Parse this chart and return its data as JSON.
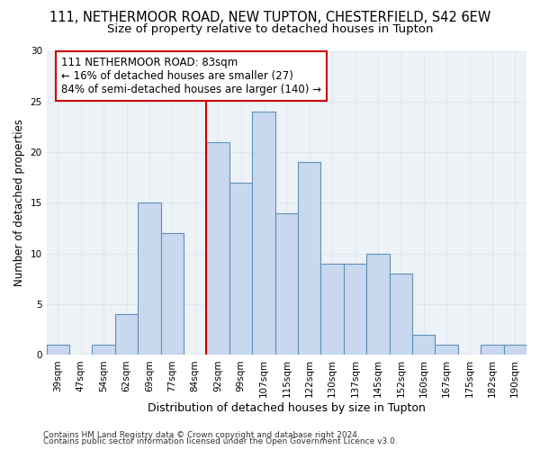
{
  "title1": "111, NETHERMOOR ROAD, NEW TUPTON, CHESTERFIELD, S42 6EW",
  "title2": "Size of property relative to detached houses in Tupton",
  "xlabel": "Distribution of detached houses by size in Tupton",
  "ylabel": "Number of detached properties",
  "categories": [
    "39sqm",
    "47sqm",
    "54sqm",
    "62sqm",
    "69sqm",
    "77sqm",
    "84sqm",
    "92sqm",
    "99sqm",
    "107sqm",
    "115sqm",
    "122sqm",
    "130sqm",
    "137sqm",
    "145sqm",
    "152sqm",
    "160sqm",
    "167sqm",
    "175sqm",
    "182sqm",
    "190sqm"
  ],
  "values": [
    1,
    0,
    1,
    4,
    15,
    12,
    0,
    21,
    17,
    24,
    14,
    19,
    9,
    9,
    10,
    8,
    2,
    1,
    0,
    1,
    1
  ],
  "bar_color": "#c8d8ee",
  "bar_edge_color": "#6090b8",
  "vline_x_index": 6,
  "vline_color": "#cc0000",
  "annotation_text": "111 NETHERMOOR ROAD: 83sqm\n← 16% of detached houses are smaller (27)\n84% of semi-detached houses are larger (140) →",
  "annotation_box_color": "#ffffff",
  "annotation_box_edge_color": "#cc0000",
  "ylim": [
    0,
    30
  ],
  "yticks": [
    0,
    5,
    10,
    15,
    20,
    25,
    30
  ],
  "footer1": "Contains HM Land Registry data © Crown copyright and database right 2024.",
  "footer2": "Contains public sector information licensed under the Open Government Licence v3.0.",
  "grid_color": "#dde8f0",
  "background_color": "#edf2f7",
  "fig_background": "#ffffff",
  "title1_fontsize": 10.5,
  "title2_fontsize": 9.5,
  "xlabel_fontsize": 9,
  "ylabel_fontsize": 8.5,
  "tick_fontsize": 7.5,
  "annotation_fontsize": 8.5,
  "footer_fontsize": 6.5
}
